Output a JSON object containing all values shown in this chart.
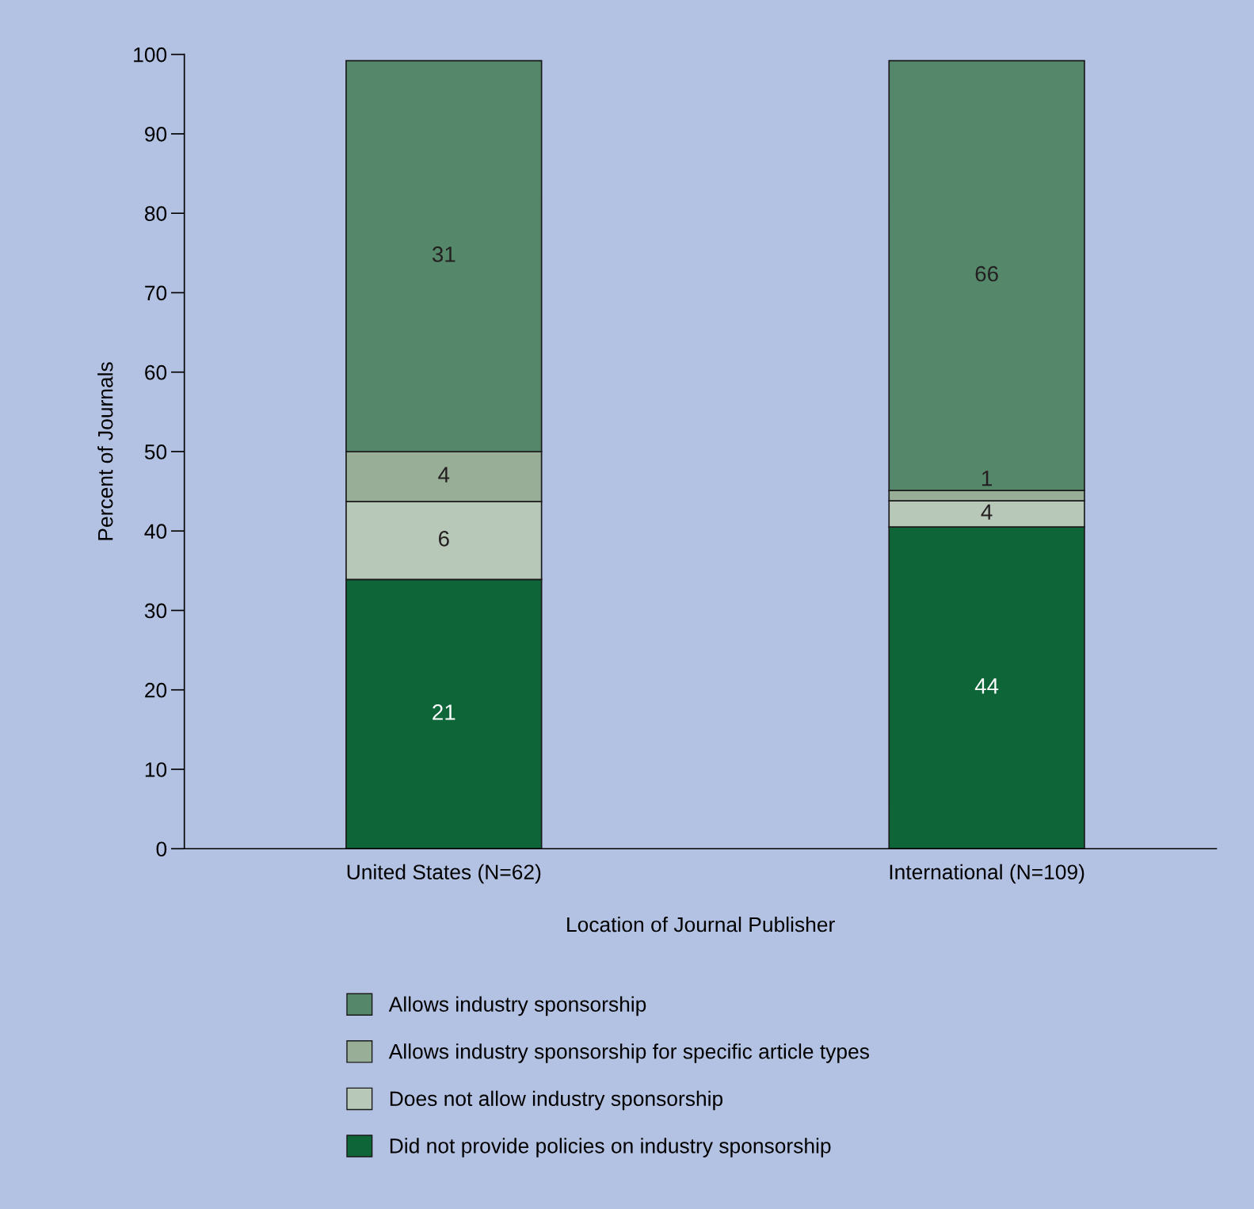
{
  "chart_data": {
    "type": "bar",
    "stacked": true,
    "xlabel": "Location of Journal Publisher",
    "ylabel": "Percent of Journals",
    "categories": [
      "United States (N=62)",
      "International (N=109)"
    ],
    "series": [
      {
        "name": "Did not provide policies on industry sponsorship",
        "color": "#0e6638",
        "values": [
          33.9,
          40.5
        ]
      },
      {
        "name": "Does not allow industry sponsorship",
        "color": "#b8c8b8",
        "values": [
          9.8,
          3.3
        ]
      },
      {
        "name": "Allows industry sponsorship for specific article types",
        "color": "#98ae96",
        "values": [
          6.3,
          1.3
        ]
      },
      {
        "name": "Allows industry sponsorship",
        "color": "#55876a",
        "values": [
          49.2,
          54.1
        ]
      }
    ],
    "annotations": [
      "21",
      "44",
      "6",
      "4",
      "4",
      "1",
      "31",
      "66"
    ],
    "ylim": [
      0,
      100
    ],
    "yticks": [
      0,
      10,
      20,
      30,
      40,
      50,
      60,
      70,
      80,
      90,
      100
    ],
    "grid": false,
    "legend": "bottom"
  }
}
